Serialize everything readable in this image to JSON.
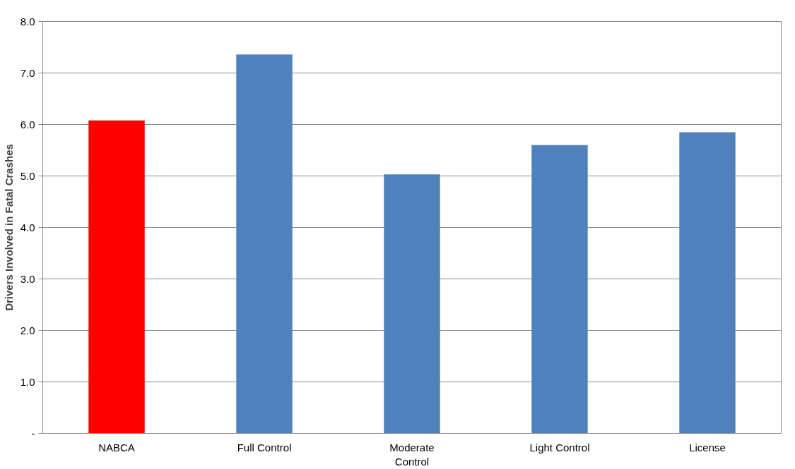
{
  "chart_data": {
    "type": "bar",
    "ylabel": "Drivers Involved in Fatal Crashes",
    "categories": [
      "NABCA",
      "Full Control",
      "Moderate Control",
      "Light Control",
      "License"
    ],
    "values": [
      6.08,
      7.36,
      5.03,
      5.6,
      5.85
    ],
    "colors": [
      "#ff0000",
      "#4f81bd",
      "#4f81bd",
      "#4f81bd",
      "#4f81bd"
    ],
    "ylim": [
      0,
      8
    ],
    "yticks": [
      {
        "value": 0,
        "label": "-"
      },
      {
        "value": 1,
        "label": "1.0"
      },
      {
        "value": 2,
        "label": "2.0"
      },
      {
        "value": 3,
        "label": "3.0"
      },
      {
        "value": 4,
        "label": "4.0"
      },
      {
        "value": 5,
        "label": "5.0"
      },
      {
        "value": 6,
        "label": "6.0"
      },
      {
        "value": 7,
        "label": "7.0"
      },
      {
        "value": 8,
        "label": "8.0"
      }
    ],
    "grid": "y"
  }
}
